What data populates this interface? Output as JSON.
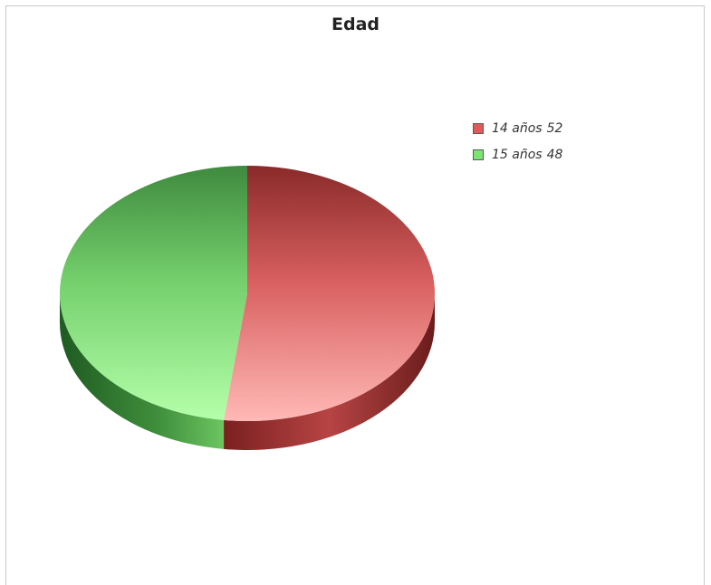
{
  "chart_data": {
    "type": "pie",
    "title": "Edad",
    "slices": [
      {
        "label": "14 años",
        "value": 52,
        "color": "#e8605f"
      },
      {
        "label": "15 años",
        "value": 48,
        "color": "#7bd96f"
      }
    ],
    "legend_position": "top-right",
    "style": "3d"
  }
}
